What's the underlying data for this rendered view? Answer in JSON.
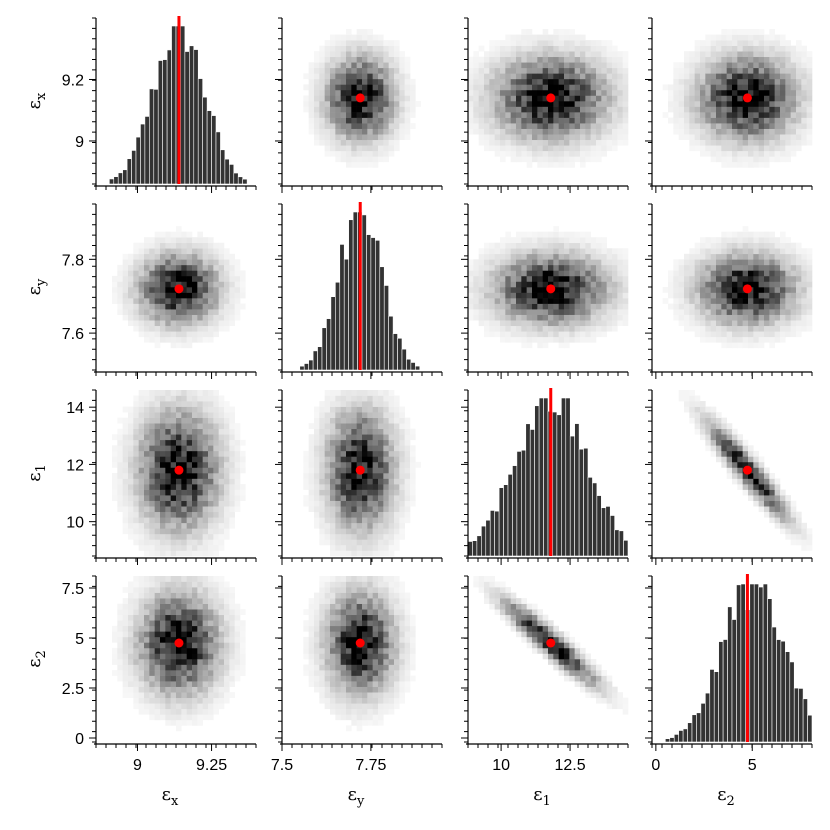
{
  "chart_data": {
    "type": "corner-plot",
    "description_variables": [
      "εx",
      "εy",
      "ε1",
      "ε2"
    ],
    "variables": [
      {
        "label": "ε",
        "subscript": "x",
        "true_value": 9.14,
        "range": [
          8.86,
          9.4
        ],
        "ticks": [
          9.0,
          9.25
        ],
        "tick_labels": [
          "9",
          "9.25"
        ],
        "ylabel_ticks": [
          9.0,
          9.2
        ],
        "ylabel_tick_labels": [
          "9",
          "9.2"
        ],
        "hist_std": 0.085
      },
      {
        "label": "ε",
        "subscript": "y",
        "true_value": 7.72,
        "range": [
          7.5,
          7.95
        ],
        "ticks": [
          7.5,
          7.75
        ],
        "tick_labels": [
          "7.5",
          "7.75"
        ],
        "ylabel_ticks": [
          7.6,
          7.8
        ],
        "ylabel_tick_labels": [
          "7.6",
          "7.8"
        ],
        "hist_std": 0.06
      },
      {
        "label": "ε",
        "subscript": "1",
        "true_value": 11.8,
        "range": [
          8.8,
          14.6
        ],
        "ticks": [
          10,
          12.5
        ],
        "tick_labels": [
          "10",
          "12.5"
        ],
        "ylabel_ticks": [
          10,
          12,
          14
        ],
        "ylabel_tick_labels": [
          "10",
          "12",
          "14"
        ],
        "hist_std": 1.3
      },
      {
        "label": "ε",
        "subscript": "2",
        "true_value": 4.75,
        "range": [
          -0.2,
          8.1
        ],
        "ticks": [
          0,
          5
        ],
        "tick_labels": [
          "0",
          "5"
        ],
        "ylabel_ticks": [
          0,
          2.5,
          5,
          7.5
        ],
        "ylabel_tick_labels": [
          "0",
          "2.5",
          "5",
          "7.5"
        ],
        "hist_std": 1.6
      }
    ],
    "correlations": {
      "2-3": -0.97
    },
    "colors": {
      "hist_bar": "#333333",
      "truth": "#ff0000",
      "density_max": "#000000"
    },
    "grid": false
  }
}
